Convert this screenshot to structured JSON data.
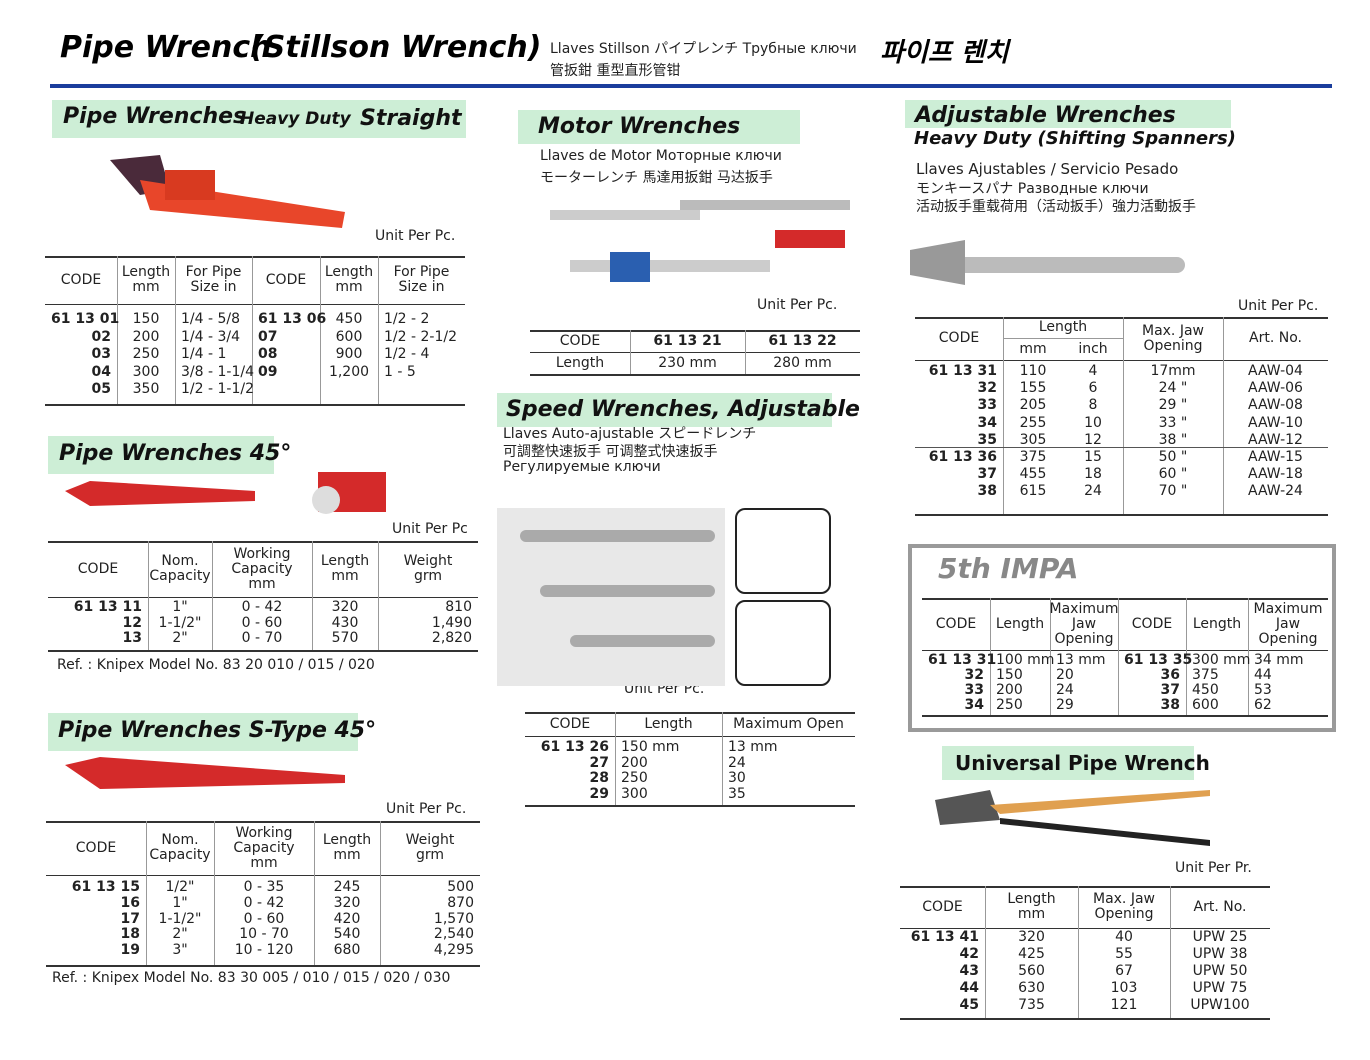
{
  "header": {
    "title": "Pipe Wrench",
    "title2": "(Stillson Wrench)",
    "lang1": "Llaves Stillson  パイプレンチ  Трубные ключи",
    "lang2": "管扳鉗  重型直形管钳",
    "korean": "파이프 렌치"
  },
  "straight": {
    "title": "Pipe Wrenches",
    "sub": "Heavy Duty",
    "sub2": "Straight",
    "unit": "Unit Per Pc.",
    "headers": [
      "CODE",
      "Length\nmm",
      "For Pipe\nSize in",
      "CODE",
      "Length\nmm",
      "For Pipe\nSize in"
    ],
    "rows": [
      [
        "61 13 01",
        "150",
        "1/4 - 5/8",
        "61 13 06",
        "450",
        "1/2 - 2"
      ],
      [
        "02",
        "200",
        "1/4 - 3/4",
        "07",
        "600",
        "1/2 - 2-1/2"
      ],
      [
        "03",
        "250",
        "1/4 - 1",
        "08",
        "900",
        "1/2 - 4"
      ],
      [
        "04",
        "300",
        "3/8 - 1-1/4",
        "09",
        "1,200",
        "1 - 5"
      ],
      [
        "05",
        "350",
        "1/2 - 1-1/2"
      ]
    ]
  },
  "p45": {
    "title": "Pipe Wrenches 45°",
    "unit": "Unit Per Pc",
    "headers": [
      "CODE",
      "Nom.\nCapacity",
      "Working\nCapacity\nmm",
      "Length\nmm",
      "Weight\ngrm"
    ],
    "rows": [
      [
        "61 13 11",
        "1\"",
        "0 - 42",
        "320",
        "810"
      ],
      [
        "12",
        "1-1/2\"",
        "0 - 60",
        "430",
        "1,490"
      ],
      [
        "13",
        "2\"",
        "0 - 70",
        "570",
        "2,820"
      ]
    ],
    "ref": "Ref. : Knipex Model No. 83 20 010 / 015 / 020"
  },
  "stype": {
    "title": "Pipe Wrenches S-Type 45°",
    "unit": "Unit Per Pc.",
    "headers": [
      "CODE",
      "Nom.\nCapacity",
      "Working\nCapacity\nmm",
      "Length\nmm",
      "Weight\ngrm"
    ],
    "rows": [
      [
        "61 13 15",
        "1/2\"",
        "0 -  35",
        "245",
        "500"
      ],
      [
        "16",
        "1\"",
        "0 -  42",
        "320",
        "870"
      ],
      [
        "17",
        "1-1/2\"",
        "0 -  60",
        "420",
        "1,570"
      ],
      [
        "18",
        "2\"",
        "10 -  70",
        "540",
        "2,540"
      ],
      [
        "19",
        "3\"",
        "10 - 120",
        "680",
        "4,295"
      ]
    ],
    "ref": "Ref. : Knipex Model No. 83 30 005 / 010 / 015 / 020 / 030"
  },
  "motor": {
    "title": "Motor Wrenches",
    "lang1": "Llaves de Motor  Моторные ключи",
    "lang2": "モーターレンチ  馬達用扳鉗  马达扳手",
    "unit": "Unit Per Pc.",
    "rows": [
      [
        "CODE",
        "61 13 21",
        "61 13 22"
      ],
      [
        "Length",
        "230 mm",
        "280 mm"
      ]
    ]
  },
  "speed": {
    "title": "Speed Wrenches, Adjustable",
    "lang1": "Llaves Auto-ajustable  スピードレンチ",
    "lang2": "可調整快速扳手  可调整式快速扳手",
    "lang3": "Регулируемые ключи",
    "unit": "Unit Per Pc.",
    "headers": [
      "CODE",
      "Length",
      "Maximum Open"
    ],
    "rows": [
      [
        "61 13 26",
        "150 mm",
        "13 mm"
      ],
      [
        "27",
        "200",
        "24"
      ],
      [
        "28",
        "250",
        "30"
      ],
      [
        "29",
        "300",
        "35"
      ]
    ]
  },
  "adjustable": {
    "title": "Adjustable Wrenches",
    "sub": "Heavy Duty  (Shifting Spanners)",
    "lang1": "Llaves Ajustables / Servicio Pesado",
    "lang2": "モンキースパナ  Разводные ключи",
    "lang3": "活动扳手重载荷用（活动扳手）強力活動扳手",
    "unit": "Unit Per Pc.",
    "headers": [
      "CODE",
      "Length",
      "mm",
      "inch",
      "Max. Jaw\nOpening",
      "Art. No."
    ],
    "rows": [
      [
        "61 13 31",
        "110",
        "4",
        "17mm",
        "AAW-04"
      ],
      [
        "32",
        "155",
        "6",
        "24 \"",
        "AAW-06"
      ],
      [
        "33",
        "205",
        "8",
        "29 \"",
        "AAW-08"
      ],
      [
        "34",
        "255",
        "10",
        "33 \"",
        "AAW-10"
      ],
      [
        "35",
        "305",
        "12",
        "38 \"",
        "AAW-12"
      ],
      [
        "61 13 36",
        "375",
        "15",
        "50 \"",
        "AAW-15"
      ],
      [
        "37",
        "455",
        "18",
        "60 \"",
        "AAW-18"
      ],
      [
        "38",
        "615",
        "24",
        "70 \"",
        "AAW-24"
      ]
    ]
  },
  "impa": {
    "title": "5th IMPA",
    "headers": [
      "CODE",
      "Length",
      "Maximum\nJaw\nOpening",
      "CODE",
      "Length",
      "Maximum\nJaw\nOpening"
    ],
    "rows": [
      [
        "61 13 31",
        "100 mm",
        "13 mm",
        "61 13 35",
        "300 mm",
        "34 mm"
      ],
      [
        "32",
        "150",
        "20",
        "36",
        "375",
        "44"
      ],
      [
        "33",
        "200",
        "24",
        "37",
        "450",
        "53"
      ],
      [
        "34",
        "250",
        "29",
        "38",
        "600",
        "62"
      ]
    ]
  },
  "universal": {
    "title": "Universal Pipe Wrench",
    "unit": "Unit Per Pr.",
    "headers": [
      "CODE",
      "Length\nmm",
      "Max. Jaw\nOpening",
      "Art. No."
    ],
    "rows": [
      [
        "61 13 41",
        "320",
        "40",
        "UPW  25"
      ],
      [
        "42",
        "425",
        "55",
        "UPW  38"
      ],
      [
        "43",
        "560",
        "67",
        "UPW  50"
      ],
      [
        "44",
        "630",
        "103",
        "UPW  75"
      ],
      [
        "45",
        "735",
        "121",
        "UPW100"
      ]
    ]
  }
}
